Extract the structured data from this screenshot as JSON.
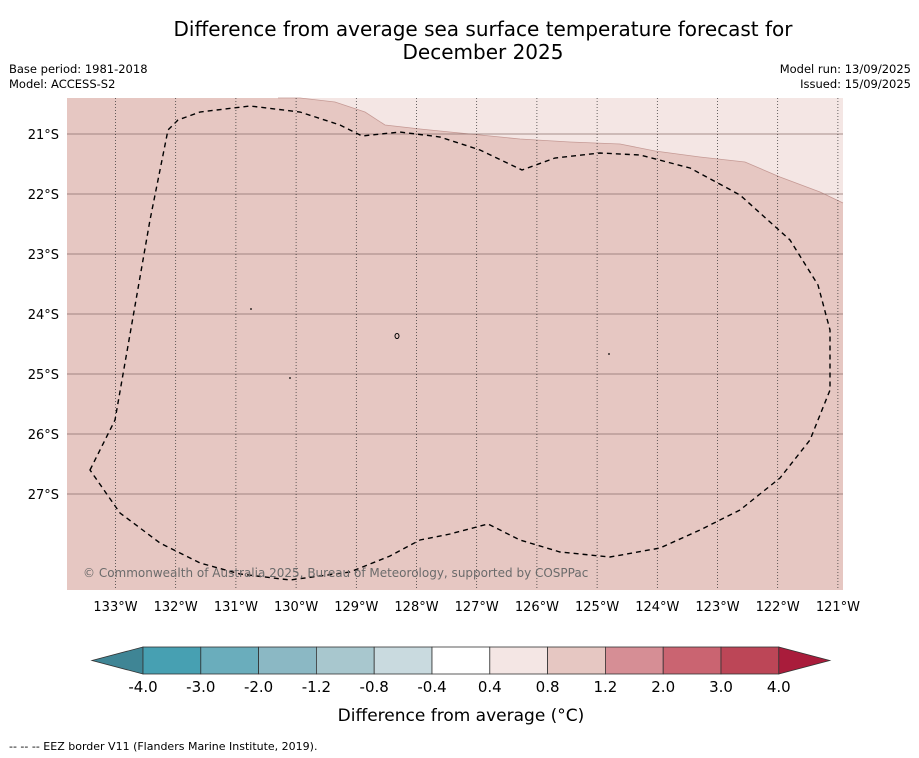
{
  "title": {
    "line1": "Difference from average sea surface temperature forecast for",
    "line2": "December 2025"
  },
  "meta": {
    "base_period": "Base period: 1981-2018",
    "model": "Model: ACCESS-S2",
    "model_run": "Model run: 13/09/2025",
    "issued": "Issued: 15/09/2025"
  },
  "map": {
    "lat_labels": [
      "21°S",
      "22°S",
      "23°S",
      "24°S",
      "25°S",
      "26°S",
      "27°S"
    ],
    "lon_labels": [
      "133°W",
      "132°W",
      "131°W",
      "130°W",
      "129°W",
      "128°W",
      "127°W",
      "126°W",
      "125°W",
      "124°W",
      "123°W",
      "122°W",
      "121°W"
    ],
    "copyright": "© Commonwealth of Australia 2025, Bureau of Meteorology, supported by COSPPac",
    "fill_colors": {
      "main": "#e6c7c2",
      "warm_minor": "#f4e6e4"
    }
  },
  "colorbar": {
    "label": "Difference from average (°C)",
    "tick_labels": [
      "-4.0",
      "-3.0",
      "-2.0",
      "-1.2",
      "-0.8",
      "-0.4",
      "0.4",
      "0.8",
      "1.2",
      "2.0",
      "3.0",
      "4.0"
    ],
    "colors": [
      "#3f8595",
      "#47a0b2",
      "#6aadbc",
      "#8bb8c4",
      "#a8c7ce",
      "#c9dadf",
      "#ffffff",
      "#f4e6e4",
      "#e6c7c2",
      "#d68e95",
      "#ca6471",
      "#bc4657",
      "#a91c3b"
    ]
  },
  "footer": "--  --  -- EEZ border V11 (Flanders Marine Institute, 2019)."
}
